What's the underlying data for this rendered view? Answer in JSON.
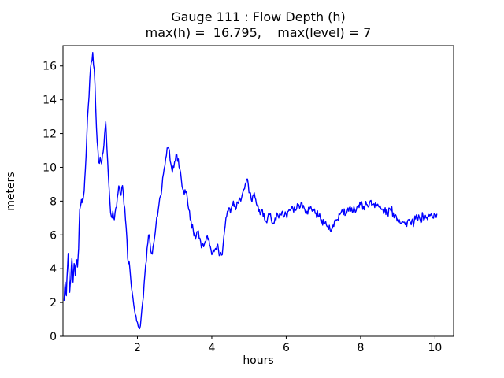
{
  "chart_data": {
    "type": "line",
    "title": "Gauge 111 : Flow Depth (h)",
    "subtitle": "max(h) =  16.795,    max(level) = 7",
    "xlabel": "hours",
    "ylabel": "meters",
    "xlim": [
      0,
      10.5
    ],
    "ylim": [
      0,
      17.2
    ],
    "xticks": [
      2,
      4,
      6,
      8,
      10
    ],
    "yticks": [
      0,
      2,
      4,
      6,
      8,
      10,
      12,
      14,
      16
    ],
    "max_h": 16.795,
    "max_level": 7,
    "line_color": "#0000ff",
    "noise_amplitude": 0.55,
    "legend": null,
    "grid": false,
    "series_name": "flow depth (h)",
    "points": [
      [
        0.03,
        2.1
      ],
      [
        0.06,
        3.2
      ],
      [
        0.09,
        2.4
      ],
      [
        0.12,
        4.0
      ],
      [
        0.14,
        4.9
      ],
      [
        0.16,
        3.8
      ],
      [
        0.18,
        2.6
      ],
      [
        0.21,
        3.4
      ],
      [
        0.24,
        4.6
      ],
      [
        0.27,
        3.2
      ],
      [
        0.3,
        4.3
      ],
      [
        0.33,
        3.6
      ],
      [
        0.36,
        4.5
      ],
      [
        0.39,
        4.1
      ],
      [
        0.42,
        5.2
      ],
      [
        0.45,
        7.5
      ],
      [
        0.48,
        7.8
      ],
      [
        0.51,
        7.9
      ],
      [
        0.54,
        8.1
      ],
      [
        0.57,
        8.6
      ],
      [
        0.6,
        9.8
      ],
      [
        0.64,
        11.8
      ],
      [
        0.68,
        13.6
      ],
      [
        0.72,
        15.2
      ],
      [
        0.76,
        16.2
      ],
      [
        0.8,
        16.795
      ],
      [
        0.84,
        15.8
      ],
      [
        0.88,
        13.5
      ],
      [
        0.92,
        11.5
      ],
      [
        0.96,
        10.3
      ],
      [
        1.0,
        10.6
      ],
      [
        1.04,
        10.2
      ],
      [
        1.08,
        10.9
      ],
      [
        1.12,
        12.0
      ],
      [
        1.15,
        12.7
      ],
      [
        1.18,
        11.2
      ],
      [
        1.22,
        9.5
      ],
      [
        1.26,
        8.0
      ],
      [
        1.3,
        7.1
      ],
      [
        1.34,
        7.4
      ],
      [
        1.38,
        6.9
      ],
      [
        1.42,
        7.6
      ],
      [
        1.46,
        8.2
      ],
      [
        1.5,
        8.9
      ],
      [
        1.54,
        8.4
      ],
      [
        1.58,
        8.8
      ],
      [
        1.62,
        8.5
      ],
      [
        1.66,
        7.6
      ],
      [
        1.7,
        6.4
      ],
      [
        1.74,
        4.6
      ],
      [
        1.78,
        4.4
      ],
      [
        1.82,
        3.4
      ],
      [
        1.86,
        2.6
      ],
      [
        1.9,
        1.9
      ],
      [
        1.94,
        1.3
      ],
      [
        1.98,
        0.9
      ],
      [
        2.02,
        0.6
      ],
      [
        2.06,
        0.45
      ],
      [
        2.1,
        1.1
      ],
      [
        2.14,
        2.0
      ],
      [
        2.18,
        3.1
      ],
      [
        2.22,
        4.2
      ],
      [
        2.26,
        5.2
      ],
      [
        2.3,
        6.0
      ],
      [
        2.34,
        5.5
      ],
      [
        2.38,
        4.9
      ],
      [
        2.42,
        5.3
      ],
      [
        2.46,
        5.8
      ],
      [
        2.5,
        6.6
      ],
      [
        2.54,
        7.1
      ],
      [
        2.58,
        7.8
      ],
      [
        2.62,
        8.3
      ],
      [
        2.66,
        8.8
      ],
      [
        2.7,
        9.6
      ],
      [
        2.74,
        10.1
      ],
      [
        2.78,
        10.7
      ],
      [
        2.82,
        11.15
      ],
      [
        2.86,
        11.0
      ],
      [
        2.9,
        10.2
      ],
      [
        2.94,
        9.7
      ],
      [
        2.98,
        10.0
      ],
      [
        3.02,
        10.4
      ],
      [
        3.06,
        10.75
      ],
      [
        3.1,
        10.5
      ],
      [
        3.14,
        9.9
      ],
      [
        3.18,
        9.3
      ],
      [
        3.22,
        8.7
      ],
      [
        3.26,
        8.4
      ],
      [
        3.3,
        8.5
      ],
      [
        3.34,
        8.2
      ],
      [
        3.38,
        7.5
      ],
      [
        3.42,
        6.9
      ],
      [
        3.46,
        6.4
      ],
      [
        3.5,
        6.3
      ],
      [
        3.54,
        6.1
      ],
      [
        3.58,
        5.9
      ],
      [
        3.62,
        6.2
      ],
      [
        3.66,
        5.8
      ],
      [
        3.7,
        5.6
      ],
      [
        3.74,
        5.4
      ],
      [
        3.78,
        5.3
      ],
      [
        3.82,
        5.6
      ],
      [
        3.86,
        5.9
      ],
      [
        3.9,
        5.7
      ],
      [
        3.94,
        5.4
      ],
      [
        3.98,
        5.1
      ],
      [
        4.02,
        4.9
      ],
      [
        4.06,
        5.0
      ],
      [
        4.1,
        5.2
      ],
      [
        4.14,
        5.35
      ],
      [
        4.18,
        5.1
      ],
      [
        4.22,
        4.85
      ],
      [
        4.26,
        4.8
      ],
      [
        4.3,
        5.3
      ],
      [
        4.34,
        6.2
      ],
      [
        4.38,
        7.0
      ],
      [
        4.42,
        7.4
      ],
      [
        4.46,
        7.6
      ],
      [
        4.5,
        7.3
      ],
      [
        4.54,
        7.7
      ],
      [
        4.58,
        8.0
      ],
      [
        4.62,
        7.8
      ],
      [
        4.66,
        7.6
      ],
      [
        4.7,
        7.9
      ],
      [
        4.74,
        8.2
      ],
      [
        4.78,
        8.0
      ],
      [
        4.82,
        8.4
      ],
      [
        4.86,
        8.7
      ],
      [
        4.9,
        9.0
      ],
      [
        4.94,
        9.3
      ],
      [
        4.98,
        9.0
      ],
      [
        5.02,
        8.5
      ],
      [
        5.06,
        8.1
      ],
      [
        5.1,
        8.3
      ],
      [
        5.14,
        8.5
      ],
      [
        5.18,
        8.1
      ],
      [
        5.22,
        7.7
      ],
      [
        5.26,
        7.4
      ],
      [
        5.3,
        7.2
      ],
      [
        5.34,
        7.5
      ],
      [
        5.38,
        7.1
      ],
      [
        5.42,
        6.9
      ],
      [
        5.46,
        6.8
      ],
      [
        5.5,
        7.0
      ],
      [
        5.55,
        7.2
      ],
      [
        5.6,
        6.9
      ],
      [
        5.65,
        6.7
      ],
      [
        5.7,
        7.0
      ],
      [
        5.75,
        7.3
      ],
      [
        5.8,
        7.0
      ],
      [
        5.85,
        7.2
      ],
      [
        5.9,
        7.4
      ],
      [
        5.95,
        7.1
      ],
      [
        6.0,
        7.2
      ],
      [
        6.08,
        7.5
      ],
      [
        6.16,
        7.7
      ],
      [
        6.24,
        7.5
      ],
      [
        6.32,
        7.8
      ],
      [
        6.4,
        7.9
      ],
      [
        6.48,
        7.6
      ],
      [
        6.56,
        7.4
      ],
      [
        6.64,
        7.6
      ],
      [
        6.72,
        7.5
      ],
      [
        6.8,
        7.3
      ],
      [
        6.88,
        7.1
      ],
      [
        6.96,
        6.9
      ],
      [
        7.04,
        6.7
      ],
      [
        7.12,
        6.5
      ],
      [
        7.2,
        6.2
      ],
      [
        7.28,
        6.5
      ],
      [
        7.36,
        6.9
      ],
      [
        7.44,
        7.2
      ],
      [
        7.52,
        7.4
      ],
      [
        7.6,
        7.2
      ],
      [
        7.68,
        7.4
      ],
      [
        7.76,
        7.6
      ],
      [
        7.84,
        7.5
      ],
      [
        7.92,
        7.7
      ],
      [
        8.0,
        7.8
      ],
      [
        8.08,
        7.7
      ],
      [
        8.16,
        7.8
      ],
      [
        8.24,
        7.9
      ],
      [
        8.32,
        7.8
      ],
      [
        8.4,
        7.9
      ],
      [
        8.48,
        7.7
      ],
      [
        8.56,
        7.5
      ],
      [
        8.64,
        7.4
      ],
      [
        8.72,
        7.3
      ],
      [
        8.8,
        7.5
      ],
      [
        8.88,
        7.3
      ],
      [
        8.96,
        7.1
      ],
      [
        9.04,
        6.9
      ],
      [
        9.12,
        6.8
      ],
      [
        9.2,
        6.6
      ],
      [
        9.28,
        6.9
      ],
      [
        9.36,
        6.6
      ],
      [
        9.44,
        6.8
      ],
      [
        9.52,
        7.0
      ],
      [
        9.6,
        6.9
      ],
      [
        9.68,
        7.1
      ],
      [
        9.76,
        7.0
      ],
      [
        9.84,
        7.1
      ],
      [
        9.92,
        7.15
      ],
      [
        10.0,
        7.2
      ],
      [
        10.05,
        7.25
      ]
    ]
  }
}
